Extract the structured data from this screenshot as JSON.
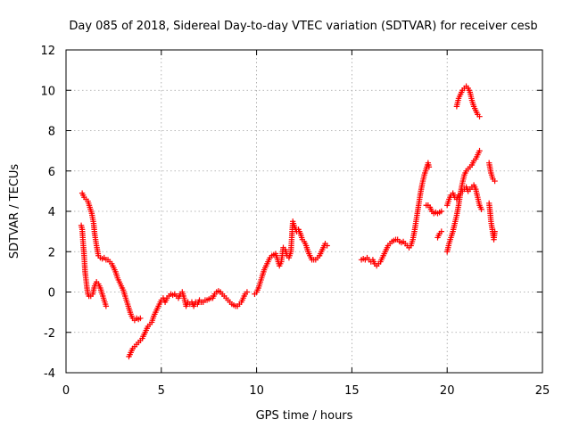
{
  "chart_data": {
    "type": "scatter",
    "title": "Day 085 of 2018, Sidereal Day-to-day VTEC variation (SDTVAR) for receiver cesb",
    "xlabel": "GPS time / hours",
    "ylabel": "SDTVAR / TECUs",
    "xlim": [
      0,
      25
    ],
    "ylim": [
      -4,
      12
    ],
    "xticks": [
      0,
      5,
      10,
      15,
      20,
      25
    ],
    "yticks": [
      -4,
      -2,
      0,
      2,
      4,
      6,
      8,
      10,
      12
    ],
    "xtick_labels": [
      "0",
      "5",
      "10",
      "15",
      "20",
      "25"
    ],
    "ytick_labels": [
      "-4",
      "-2",
      "0",
      "2",
      "4",
      "6",
      "8",
      "10",
      "12"
    ],
    "grid": true,
    "marker": "plus",
    "color": "#ff0000",
    "series": [
      {
        "name": "SDTVAR",
        "segments": [
          [
            [
              0.8,
              3.3
            ],
            [
              0.85,
              3.1
            ],
            [
              0.9,
              2.4
            ],
            [
              0.95,
              1.8
            ],
            [
              1.0,
              1.0
            ],
            [
              1.05,
              0.6
            ],
            [
              1.1,
              0.2
            ],
            [
              1.15,
              -0.1
            ],
            [
              1.2,
              -0.2
            ],
            [
              1.3,
              -0.2
            ],
            [
              1.4,
              -0.1
            ],
            [
              1.5,
              0.3
            ],
            [
              1.6,
              0.5
            ],
            [
              1.7,
              0.4
            ],
            [
              1.8,
              0.2
            ],
            [
              1.9,
              -0.1
            ],
            [
              2.0,
              -0.4
            ],
            [
              2.1,
              -0.7
            ]
          ],
          [
            [
              0.85,
              4.9
            ],
            [
              0.95,
              4.7
            ],
            [
              1.05,
              4.6
            ],
            [
              1.15,
              4.5
            ],
            [
              1.25,
              4.2
            ],
            [
              1.35,
              3.9
            ],
            [
              1.45,
              3.4
            ],
            [
              1.5,
              2.9
            ],
            [
              1.6,
              2.3
            ],
            [
              1.7,
              1.8
            ],
            [
              1.8,
              1.7
            ],
            [
              1.9,
              1.65
            ],
            [
              2.0,
              1.7
            ],
            [
              2.1,
              1.6
            ],
            [
              2.2,
              1.6
            ],
            [
              2.3,
              1.5
            ],
            [
              2.4,
              1.4
            ],
            [
              2.5,
              1.2
            ],
            [
              2.6,
              1.0
            ],
            [
              2.7,
              0.7
            ],
            [
              2.8,
              0.5
            ],
            [
              2.9,
              0.3
            ],
            [
              3.0,
              0.1
            ],
            [
              3.1,
              -0.2
            ],
            [
              3.2,
              -0.5
            ],
            [
              3.3,
              -0.8
            ],
            [
              3.4,
              -1.1
            ],
            [
              3.5,
              -1.3
            ],
            [
              3.6,
              -1.4
            ],
            [
              3.7,
              -1.3
            ],
            [
              3.8,
              -1.35
            ],
            [
              3.9,
              -1.3
            ]
          ],
          [
            [
              3.3,
              -3.2
            ],
            [
              3.4,
              -3.0
            ],
            [
              3.5,
              -2.8
            ],
            [
              3.6,
              -2.7
            ],
            [
              3.7,
              -2.6
            ],
            [
              3.8,
              -2.5
            ],
            [
              3.9,
              -2.4
            ],
            [
              4.0,
              -2.3
            ],
            [
              4.1,
              -2.1
            ],
            [
              4.2,
              -1.9
            ],
            [
              4.3,
              -1.7
            ],
            [
              4.4,
              -1.6
            ],
            [
              4.5,
              -1.5
            ],
            [
              4.6,
              -1.2
            ],
            [
              4.7,
              -1.0
            ],
            [
              4.8,
              -0.8
            ],
            [
              4.9,
              -0.6
            ],
            [
              5.0,
              -0.4
            ],
            [
              5.1,
              -0.3
            ],
            [
              5.2,
              -0.5
            ],
            [
              5.3,
              -0.3
            ],
            [
              5.4,
              -0.2
            ],
            [
              5.5,
              -0.1
            ],
            [
              5.6,
              -0.15
            ],
            [
              5.7,
              -0.1
            ],
            [
              5.8,
              -0.2
            ],
            [
              5.9,
              -0.3
            ],
            [
              6.0,
              -0.1
            ],
            [
              6.1,
              0.0
            ],
            [
              6.2,
              -0.3
            ],
            [
              6.3,
              -0.7
            ],
            [
              6.4,
              -0.5
            ],
            [
              6.5,
              -0.6
            ],
            [
              6.6,
              -0.5
            ],
            [
              6.7,
              -0.7
            ],
            [
              6.8,
              -0.5
            ],
            [
              6.9,
              -0.6
            ],
            [
              7.0,
              -0.4
            ],
            [
              7.1,
              -0.5
            ],
            [
              7.2,
              -0.5
            ],
            [
              7.3,
              -0.4
            ],
            [
              7.4,
              -0.4
            ],
            [
              7.5,
              -0.35
            ],
            [
              7.6,
              -0.3
            ],
            [
              7.7,
              -0.3
            ],
            [
              7.8,
              -0.1
            ],
            [
              7.9,
              0.0
            ],
            [
              8.0,
              0.05
            ],
            [
              8.1,
              0.0
            ],
            [
              8.2,
              -0.1
            ],
            [
              8.3,
              -0.2
            ],
            [
              8.4,
              -0.3
            ],
            [
              8.5,
              -0.4
            ],
            [
              8.6,
              -0.5
            ],
            [
              8.7,
              -0.6
            ],
            [
              8.8,
              -0.65
            ],
            [
              8.9,
              -0.7
            ],
            [
              9.0,
              -0.7
            ],
            [
              9.1,
              -0.6
            ],
            [
              9.2,
              -0.5
            ],
            [
              9.3,
              -0.3
            ],
            [
              9.4,
              -0.1
            ],
            [
              9.5,
              0.0
            ]
          ],
          [
            [
              9.9,
              -0.1
            ],
            [
              10.0,
              0.0
            ],
            [
              10.1,
              0.2
            ],
            [
              10.2,
              0.5
            ],
            [
              10.3,
              0.8
            ],
            [
              10.4,
              1.1
            ],
            [
              10.5,
              1.3
            ],
            [
              10.6,
              1.5
            ],
            [
              10.7,
              1.7
            ],
            [
              10.8,
              1.8
            ],
            [
              10.9,
              1.85
            ],
            [
              11.0,
              1.9
            ],
            [
              11.1,
              1.6
            ],
            [
              11.2,
              1.3
            ],
            [
              11.3,
              1.5
            ],
            [
              11.4,
              2.2
            ],
            [
              11.5,
              2.1
            ],
            [
              11.6,
              1.8
            ],
            [
              11.7,
              1.7
            ],
            [
              11.8,
              2.0
            ],
            [
              11.9,
              3.5
            ],
            [
              12.0,
              3.2
            ],
            [
              12.1,
              3.0
            ],
            [
              12.2,
              3.1
            ],
            [
              12.3,
              2.9
            ],
            [
              12.4,
              2.6
            ],
            [
              12.5,
              2.5
            ],
            [
              12.6,
              2.3
            ],
            [
              12.7,
              2.0
            ],
            [
              12.8,
              1.8
            ],
            [
              12.9,
              1.6
            ],
            [
              13.0,
              1.6
            ],
            [
              13.1,
              1.6
            ],
            [
              13.2,
              1.7
            ],
            [
              13.3,
              1.8
            ],
            [
              13.4,
              2.0
            ],
            [
              13.5,
              2.2
            ],
            [
              13.6,
              2.4
            ],
            [
              13.7,
              2.3
            ]
          ],
          [
            [
              15.5,
              1.6
            ],
            [
              15.6,
              1.65
            ],
            [
              15.7,
              1.6
            ],
            [
              15.8,
              1.7
            ],
            [
              15.9,
              1.6
            ],
            [
              16.0,
              1.5
            ],
            [
              16.1,
              1.6
            ],
            [
              16.2,
              1.4
            ],
            [
              16.3,
              1.3
            ],
            [
              16.4,
              1.4
            ],
            [
              16.5,
              1.5
            ],
            [
              16.6,
              1.7
            ],
            [
              16.7,
              1.9
            ],
            [
              16.8,
              2.1
            ],
            [
              16.9,
              2.3
            ],
            [
              17.0,
              2.4
            ],
            [
              17.1,
              2.5
            ],
            [
              17.2,
              2.55
            ],
            [
              17.3,
              2.6
            ],
            [
              17.4,
              2.6
            ],
            [
              17.5,
              2.5
            ],
            [
              17.6,
              2.45
            ],
            [
              17.7,
              2.5
            ],
            [
              17.8,
              2.4
            ],
            [
              17.9,
              2.3
            ],
            [
              18.0,
              2.2
            ],
            [
              18.1,
              2.3
            ],
            [
              18.2,
              2.6
            ],
            [
              18.3,
              3.1
            ],
            [
              18.4,
              3.7
            ],
            [
              18.5,
              4.3
            ],
            [
              18.6,
              4.9
            ],
            [
              18.7,
              5.4
            ],
            [
              18.8,
              5.8
            ],
            [
              18.9,
              6.1
            ],
            [
              19.0,
              6.4
            ],
            [
              19.05,
              6.2
            ]
          ],
          [
            [
              18.9,
              4.3
            ],
            [
              19.0,
              4.3
            ],
            [
              19.1,
              4.2
            ],
            [
              19.2,
              4.0
            ],
            [
              19.3,
              3.9
            ],
            [
              19.4,
              3.95
            ],
            [
              19.5,
              3.9
            ],
            [
              19.6,
              3.95
            ],
            [
              19.7,
              4.0
            ]
          ],
          [
            [
              19.5,
              2.7
            ],
            [
              19.6,
              2.9
            ],
            [
              19.7,
              3.0
            ]
          ],
          [
            [
              20.0,
              2.0
            ],
            [
              20.1,
              2.4
            ],
            [
              20.2,
              2.7
            ],
            [
              20.3,
              3.0
            ],
            [
              20.4,
              3.4
            ],
            [
              20.5,
              3.8
            ],
            [
              20.6,
              4.3
            ],
            [
              20.7,
              4.9
            ],
            [
              20.8,
              5.4
            ],
            [
              20.9,
              5.8
            ],
            [
              21.0,
              6.0
            ],
            [
              21.1,
              6.1
            ],
            [
              21.2,
              6.2
            ],
            [
              21.3,
              6.3
            ],
            [
              21.4,
              6.5
            ],
            [
              21.5,
              6.6
            ],
            [
              21.6,
              6.8
            ],
            [
              21.7,
              7.0
            ]
          ],
          [
            [
              20.0,
              4.3
            ],
            [
              20.1,
              4.6
            ],
            [
              20.2,
              4.8
            ],
            [
              20.3,
              4.9
            ],
            [
              20.4,
              4.7
            ],
            [
              20.5,
              4.6
            ],
            [
              20.6,
              4.8
            ],
            [
              20.7,
              4.9
            ],
            [
              20.8,
              5.0
            ],
            [
              20.9,
              5.1
            ],
            [
              21.0,
              5.2
            ],
            [
              21.1,
              5.0
            ],
            [
              21.2,
              5.1
            ],
            [
              21.3,
              5.2
            ],
            [
              21.4,
              5.3
            ],
            [
              21.5,
              5.1
            ],
            [
              21.6,
              4.7
            ],
            [
              21.7,
              4.3
            ],
            [
              21.8,
              4.1
            ]
          ],
          [
            [
              20.5,
              9.2
            ],
            [
              20.6,
              9.6
            ],
            [
              20.7,
              9.8
            ],
            [
              20.8,
              10.0
            ],
            [
              20.9,
              10.1
            ],
            [
              21.0,
              10.2
            ],
            [
              21.1,
              10.1
            ],
            [
              21.2,
              9.9
            ],
            [
              21.3,
              9.5
            ],
            [
              21.4,
              9.2
            ],
            [
              21.5,
              9.0
            ],
            [
              21.6,
              8.8
            ],
            [
              21.7,
              8.7
            ]
          ],
          [
            [
              22.2,
              4.4
            ],
            [
              22.25,
              4.0
            ],
            [
              22.3,
              3.5
            ],
            [
              22.35,
              3.2
            ],
            [
              22.4,
              2.9
            ],
            [
              22.45,
              2.6
            ],
            [
              22.5,
              3.0
            ]
          ],
          [
            [
              22.2,
              6.4
            ],
            [
              22.3,
              5.9
            ],
            [
              22.4,
              5.6
            ],
            [
              22.5,
              5.5
            ]
          ]
        ]
      }
    ]
  }
}
